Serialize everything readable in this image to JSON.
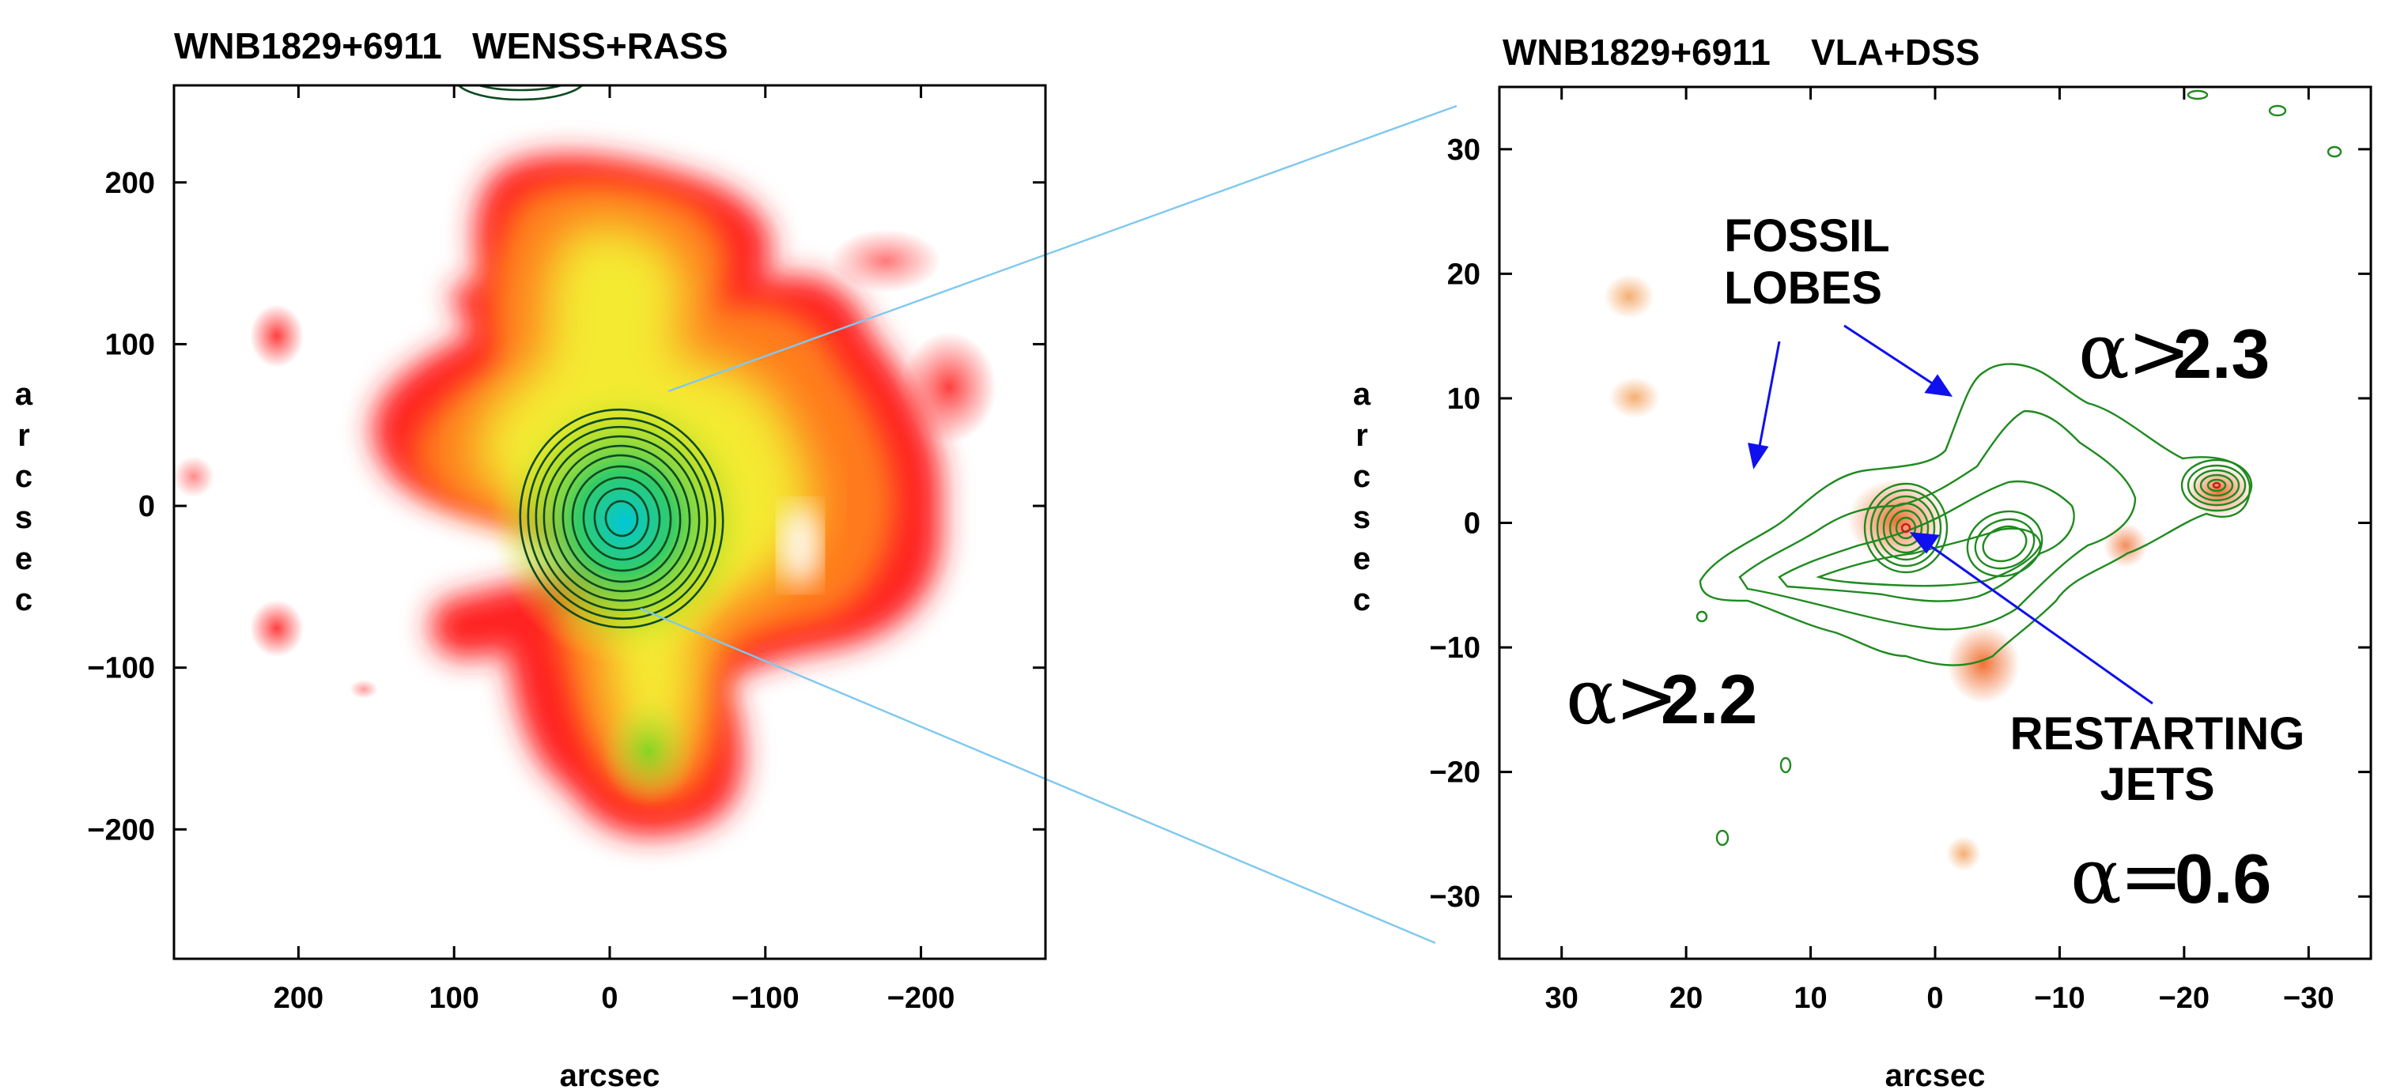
{
  "panels": [
    {
      "title": "WNB1829+6911   WENSS+RASS",
      "xlabel": "arcsec",
      "ylabel": "arcsec",
      "xlim": [
        280,
        -280
      ],
      "ylim": [
        -280,
        260
      ],
      "xticks": [
        200,
        100,
        0,
        -100,
        -200
      ],
      "yticks": [
        200,
        100,
        0,
        -100,
        -200
      ],
      "xtick_labels": [
        "200",
        "100",
        "0",
        "−100",
        "−200"
      ],
      "ytick_labels": [
        "200",
        "100",
        "0",
        "−100",
        "−200"
      ]
    },
    {
      "title": "WNB1829+6911    VLA+DSS",
      "xlabel": "arcsec",
      "ylabel": "arcsec",
      "xlim": [
        35,
        -35
      ],
      "ylim": [
        -35,
        35
      ],
      "xticks": [
        30,
        20,
        10,
        0,
        -10,
        -20,
        -30
      ],
      "yticks": [
        30,
        20,
        10,
        0,
        -10,
        -20,
        -30
      ],
      "xtick_labels": [
        "30",
        "20",
        "10",
        "0",
        "−10",
        "−20",
        "−30"
      ],
      "ytick_labels": [
        "30",
        "20",
        "10",
        "0",
        "−10",
        "−20",
        "−30"
      ],
      "annotations": {
        "fossil_line1": "FOSSIL",
        "fossil_line2": "LOBES",
        "restarting_line1": "RESTARTING",
        "restarting_line2": "JETS",
        "alpha_symbol": "α",
        "alpha_ne_sign": ">",
        "alpha_ne_value": "2.3",
        "alpha_sw_sign": ">",
        "alpha_sw_value": "2.2",
        "alpha_core_sign": "=",
        "alpha_core_value": "0.6"
      }
    }
  ],
  "colors": {
    "contour_left": "#0e4a22",
    "contour_right": "#1f8a1f",
    "zoom_lines": "#7fc8f0",
    "arrows": "#1010ee",
    "optical": "#f08a3a"
  }
}
